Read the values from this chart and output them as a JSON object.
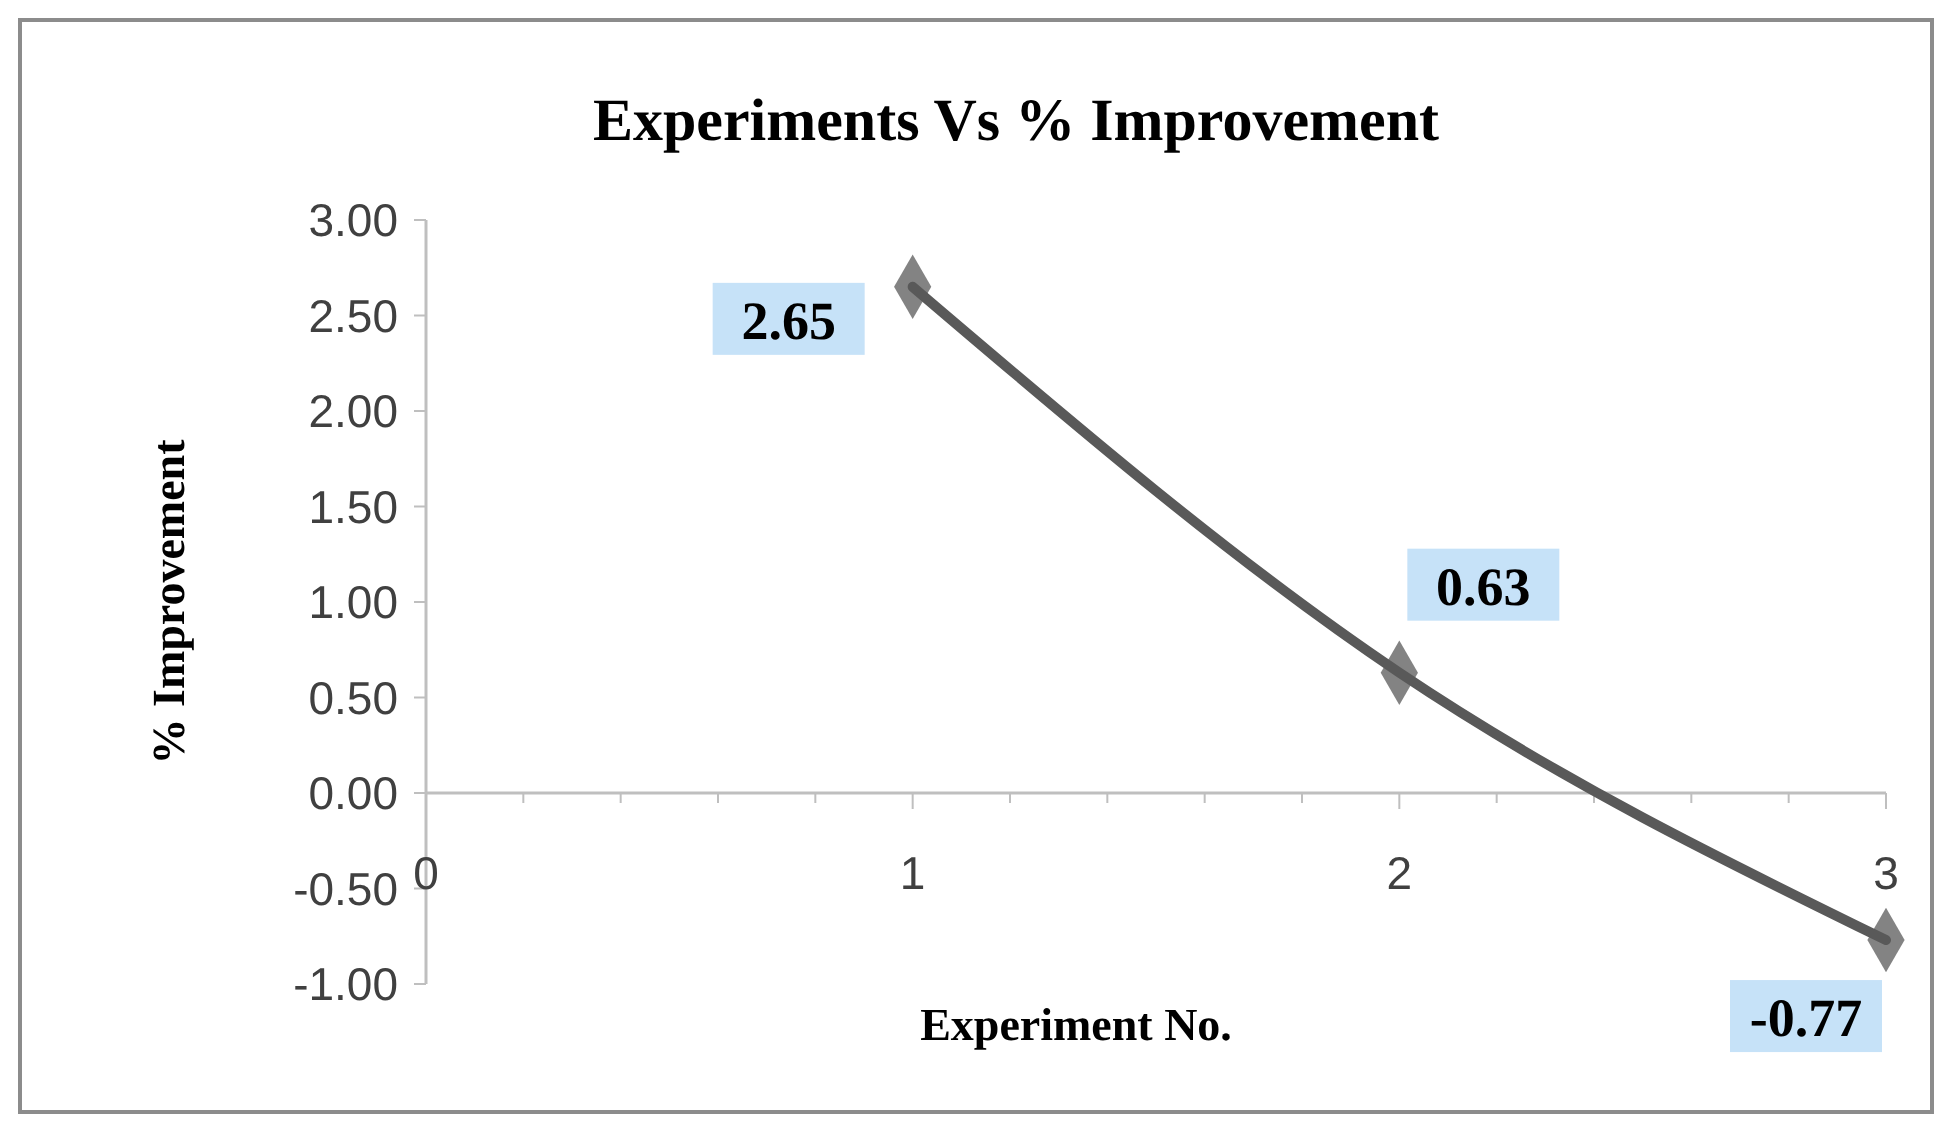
{
  "chart_data": {
    "type": "line",
    "title": "Experiments Vs % Improvement",
    "xlabel": "Experiment No.",
    "ylabel": "% Improvement",
    "x": [
      1,
      2,
      3
    ],
    "series": [
      {
        "color": "#595959",
        "values": [
          2.65,
          0.63,
          -0.77
        ]
      }
    ],
    "xlim": [
      0,
      3
    ],
    "xticks": [
      0,
      {
        "value": 0.2,
        "label": null
      },
      {
        "value": 0.4,
        "label": null
      },
      {
        "value": 0.6,
        "label": null
      },
      {
        "value": 0.8,
        "label": null
      },
      1,
      {
        "value": 1.2,
        "label": null
      },
      {
        "value": 1.4,
        "label": null
      },
      {
        "value": 1.6,
        "label": null
      },
      {
        "value": 1.8,
        "label": null
      },
      2,
      {
        "value": 2.2,
        "label": null
      },
      {
        "value": 2.4,
        "label": null
      },
      {
        "value": 2.6,
        "label": null
      },
      {
        "value": 2.8,
        "label": null
      },
      3
    ],
    "ylim": [
      -1,
      3
    ],
    "yticks": [
      {
        "value": -1,
        "label": "-1.00"
      },
      {
        "value": -0.5,
        "label": "-0.50"
      },
      {
        "value": 0,
        "label": "0.00"
      },
      {
        "value": 0.5,
        "label": "0.50"
      },
      {
        "value": 1,
        "label": "1.00"
      },
      {
        "value": 1.5,
        "label": "1.50"
      },
      {
        "value": 2,
        "label": "2.00"
      },
      {
        "value": 2.5,
        "label": "2.50"
      },
      {
        "value": 3,
        "label": "3.00"
      }
    ],
    "marker": "diamond",
    "line_style": "solid",
    "data_labels": true,
    "grid": false
  }
}
